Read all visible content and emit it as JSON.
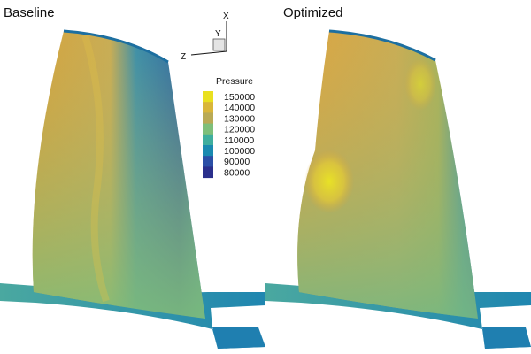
{
  "panels": [
    {
      "label": "Baseline"
    },
    {
      "label": "Optimized"
    }
  ],
  "legend": {
    "title": "Pressure",
    "levels": [
      "150000",
      "140000",
      "130000",
      "120000",
      "110000",
      "100000",
      "90000",
      "80000"
    ],
    "colors": [
      "#e9e020",
      "#d9b63a",
      "#b9aa55",
      "#7ebf7a",
      "#3fae9e",
      "#1a8ab0",
      "#2b4fa6",
      "#2a2f8c"
    ]
  },
  "axes": {
    "x": "X",
    "y": "Y",
    "z": "Z"
  }
}
